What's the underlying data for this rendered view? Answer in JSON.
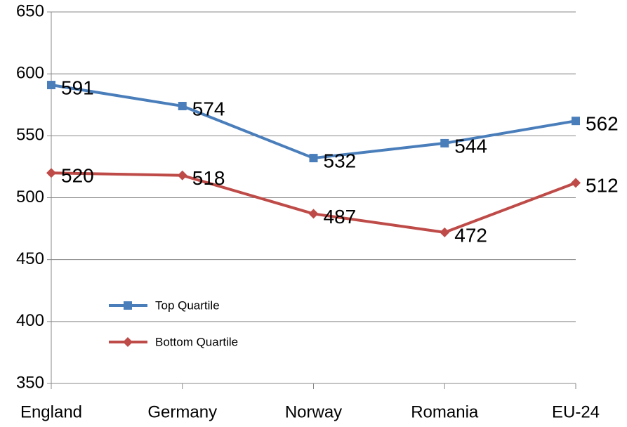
{
  "chart_data": {
    "type": "line",
    "categories": [
      "England",
      "Germany",
      "Norway",
      "Romania",
      "EU-24"
    ],
    "series": [
      {
        "name": "Top Quartile",
        "color": "#4a7ebb",
        "marker": "square",
        "values": [
          591,
          574,
          532,
          544,
          562
        ]
      },
      {
        "name": "Bottom Quartile",
        "color": "#be4b48",
        "marker": "diamond",
        "values": [
          520,
          518,
          487,
          472,
          512
        ]
      }
    ],
    "ylim": [
      350,
      650
    ],
    "yticks": [
      350,
      400,
      450,
      500,
      550,
      600,
      650
    ],
    "grid": true,
    "legend": "left",
    "data_labels": true
  }
}
